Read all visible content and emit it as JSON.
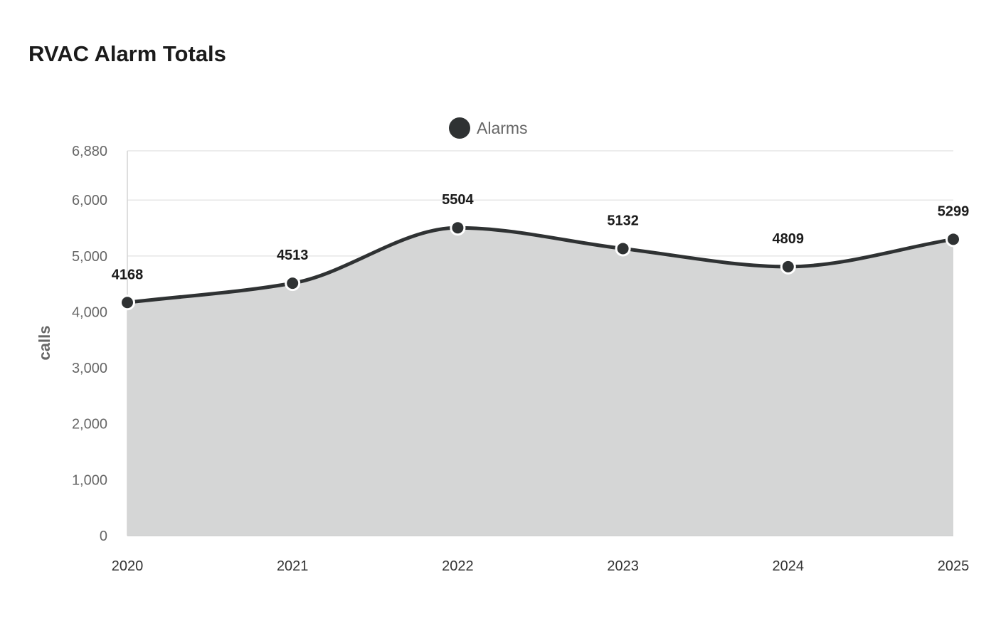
{
  "chart_data": {
    "type": "area",
    "title": "RVAC Alarm Totals",
    "xlabel": "",
    "ylabel": "calls",
    "x": [
      "2020",
      "2021",
      "2022",
      "2023",
      "2024",
      "2025"
    ],
    "series": [
      {
        "name": "Alarms",
        "values": [
          4168,
          4513,
          5504,
          5132,
          4809,
          5299
        ],
        "color": "#2f3233",
        "fill_color": "#d5d6d6"
      }
    ],
    "ylim": [
      0,
      6880
    ],
    "yticks": [
      0,
      1000,
      2000,
      3000,
      4000,
      5000,
      6000,
      6880
    ],
    "ytick_labels": [
      "0",
      "1,000",
      "2,000",
      "3,000",
      "4,000",
      "5,000",
      "6,000",
      "6,880"
    ],
    "grid": true,
    "legend_position": "top-center",
    "data_labels": true,
    "smooth": true
  }
}
